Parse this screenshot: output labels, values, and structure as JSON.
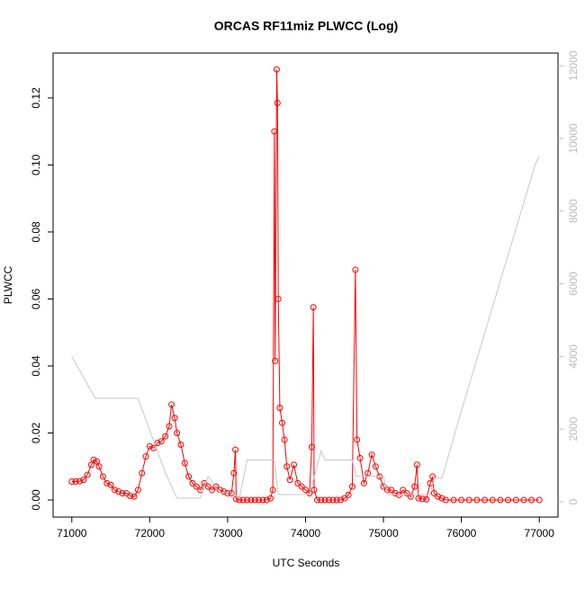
{
  "chart_data": {
    "type": "line",
    "title": "ORCAS RF11miz PLWCC (Log)",
    "x_label": "UTC Seconds",
    "y_label": "PLWCC",
    "xlim": [
      70760,
      77240
    ],
    "xticks": [
      71000,
      72000,
      73000,
      74000,
      75000,
      76000,
      77000
    ],
    "ylim": [
      -0.0051,
      0.1334
    ],
    "yticks": [
      {
        "value": 0,
        "label": "0.00"
      },
      0.02,
      0.04,
      0.06,
      0.08,
      {
        "value": 0.1,
        "label": "0.10"
      },
      0.12
    ],
    "y2lim": [
      -420,
      12350
    ],
    "y2ticks": [
      0,
      2000,
      4000,
      6000,
      8000,
      10000,
      12000
    ],
    "series": [
      {
        "color": "#ff0000",
        "points": true,
        "x": [
          71000,
          71050,
          71100,
          71150,
          71200,
          71250,
          71280,
          71320,
          71350,
          71400,
          71450,
          71500,
          71550,
          71600,
          71650,
          71700,
          71750,
          71800,
          71850,
          71900,
          71950,
          72000,
          72050,
          72100,
          72150,
          72200,
          72250,
          72280,
          72320,
          72350,
          72400,
          72450,
          72500,
          72550,
          72600,
          72650,
          72700,
          72750,
          72800,
          72850,
          72900,
          72950,
          73000,
          73050,
          73080,
          73100,
          73110,
          73150,
          73200,
          73250,
          73300,
          73350,
          73400,
          73450,
          73500,
          73550,
          73580,
          73600,
          73610,
          73630,
          73640,
          73650,
          73670,
          73700,
          73730,
          73760,
          73800,
          73850,
          73900,
          73950,
          74000,
          74050,
          74080,
          74100,
          74110,
          74150,
          74200,
          74250,
          74300,
          74350,
          74400,
          74450,
          74500,
          74550,
          74600,
          74640,
          74660,
          74700,
          74750,
          74800,
          74850,
          74900,
          74950,
          75000,
          75050,
          75100,
          75150,
          75200,
          75250,
          75300,
          75350,
          75400,
          75430,
          75450,
          75500,
          75550,
          75600,
          75630,
          75650,
          75700,
          75750,
          75800,
          75900,
          76000,
          76100,
          76200,
          76300,
          76400,
          76500,
          76600,
          76700,
          76800,
          76900,
          77000
        ],
        "values": [
          0.0055,
          0.0055,
          0.0056,
          0.006,
          0.0075,
          0.0105,
          0.012,
          0.0115,
          0.01,
          0.007,
          0.005,
          0.0045,
          0.003,
          0.0025,
          0.002,
          0.002,
          0.0012,
          0.001,
          0.003,
          0.008,
          0.013,
          0.016,
          0.0155,
          0.017,
          0.0175,
          0.019,
          0.022,
          0.0285,
          0.0245,
          0.02,
          0.0165,
          0.011,
          0.007,
          0.005,
          0.004,
          0.003,
          0.005,
          0.004,
          0.003,
          0.004,
          0.003,
          0.0025,
          0.002,
          0.002,
          0.008,
          0.015,
          0.0003,
          0,
          0,
          0,
          0,
          0,
          0,
          0,
          0,
          0.0005,
          0.003,
          0.11,
          0.0415,
          0.1285,
          0.1185,
          0.06,
          0.0275,
          0.023,
          0.018,
          0.01,
          0.006,
          0.0105,
          0.005,
          0.004,
          0.003,
          0.002,
          0.0158,
          0.0575,
          0.003,
          0,
          0,
          0,
          0,
          0,
          0,
          0,
          0.0005,
          0.0015,
          0.004,
          0.0687,
          0.018,
          0.0125,
          0.005,
          0.008,
          0.0135,
          0.01,
          0.007,
          0.004,
          0.003,
          0.003,
          0.002,
          0.0015,
          0.003,
          0.002,
          0.001,
          0.004,
          0.0105,
          0.0005,
          0.0003,
          0.0002,
          0.005,
          0.007,
          0.002,
          0.001,
          0.0005,
          0,
          0,
          0,
          0,
          0,
          0,
          0,
          0,
          0,
          0,
          0,
          0,
          0
        ]
      },
      {
        "color": "#c8c8c8",
        "points": false,
        "axis": "y2",
        "x": [
          71000,
          71300,
          71850,
          72200,
          72350,
          72650,
          72750,
          72900,
          73050,
          73150,
          73250,
          73600,
          73650,
          74050,
          74200,
          74250,
          74600,
          74650,
          75000,
          75050,
          75600,
          75650,
          75750,
          76000,
          76950,
          77000
        ],
        "values": [
          4000,
          2850,
          2850,
          800,
          100,
          100,
          700,
          250,
          250,
          100,
          1150,
          1150,
          200,
          200,
          1400,
          1150,
          1150,
          700,
          700,
          200,
          200,
          650,
          650,
          2500,
          9300,
          9500
        ]
      }
    ]
  }
}
